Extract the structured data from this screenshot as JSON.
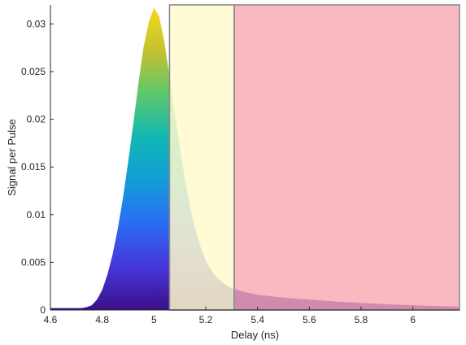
{
  "chart_data": {
    "type": "area",
    "xlabel": "Delay (ns)",
    "ylabel": "Signal per Pulse",
    "xlim": [
      4.6,
      6.18
    ],
    "ylim": [
      0,
      0.032
    ],
    "x_ticks": [
      4.6,
      4.8,
      5,
      5.2,
      5.4,
      5.6,
      5.8,
      6
    ],
    "x_tick_labels": [
      "4.6",
      "4.8",
      "5",
      "5.2",
      "5.4",
      "5.6",
      "5.8",
      "6"
    ],
    "y_ticks": [
      0,
      0.005,
      0.01,
      0.015,
      0.02,
      0.025,
      0.03
    ],
    "y_tick_labels": [
      "0",
      "0.005",
      "0.01",
      "0.015",
      "0.02",
      "0.025",
      "0.03"
    ],
    "grid": false,
    "fill": "gradient by signal height (parula-like: violet → blue → teal → green → yellow)",
    "series": [
      {
        "x": [
          4.6,
          4.7,
          4.72,
          4.74,
          4.76,
          4.78,
          4.8,
          4.82,
          4.84,
          4.86,
          4.88,
          4.9,
          4.92,
          4.94,
          4.96,
          4.98,
          5.0,
          5.02,
          5.04,
          5.06,
          5.08,
          5.1,
          5.12,
          5.14,
          5.16,
          5.18,
          5.2,
          5.22,
          5.24,
          5.26,
          5.28,
          5.3,
          5.35,
          5.4,
          5.5,
          5.6,
          5.7,
          5.8,
          5.9,
          6.0,
          6.1,
          6.18
        ],
        "y": [
          0.0002,
          0.0002,
          0.0002,
          0.0003,
          0.0005,
          0.0011,
          0.0021,
          0.0037,
          0.0058,
          0.0085,
          0.0117,
          0.0155,
          0.0195,
          0.0238,
          0.0276,
          0.0302,
          0.0317,
          0.0308,
          0.0281,
          0.0245,
          0.0207,
          0.017,
          0.0136,
          0.0107,
          0.0084,
          0.0066,
          0.0052,
          0.0042,
          0.0035,
          0.003,
          0.0026,
          0.0023,
          0.0019,
          0.0016,
          0.0013,
          0.0011,
          0.0009,
          0.00075,
          0.0006,
          0.0005,
          0.0004,
          0.00035
        ]
      }
    ],
    "regions": [
      {
        "x_start": 5.06,
        "x_end": 5.31,
        "y_start": 0,
        "y_end": 0.032,
        "color": "#fffacd",
        "opacity": 0.85
      },
      {
        "x_start": 5.31,
        "x_end": 6.18,
        "y_start": 0,
        "y_end": 0.032,
        "color": "#f7a8b2",
        "opacity": 0.8
      }
    ],
    "gradient_stops": [
      "#3b0f8a",
      "#4636d8",
      "#2b6cf2",
      "#139dd8",
      "#12b8b4",
      "#5cc86b",
      "#c3c130",
      "#f5d81d"
    ],
    "region_edge_color": "#8a8a8a",
    "axis_color": "#262626"
  }
}
